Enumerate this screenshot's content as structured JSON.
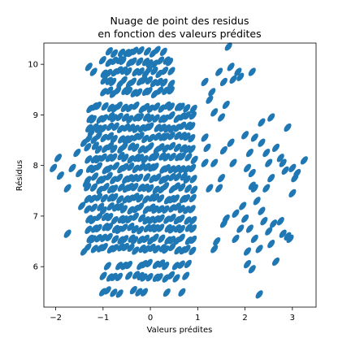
{
  "chart_data": {
    "type": "scatter",
    "title_lines": [
      "Nuage de point des residus",
      "en fonction des valeurs prédites"
    ],
    "xlabel": "Valeurs prédites",
    "ylabel": "Résidus",
    "xlim": [
      -2.25,
      3.5
    ],
    "ylim": [
      5.2,
      10.42
    ],
    "xticks": [
      -2,
      -1,
      0,
      1,
      2,
      3
    ],
    "yticks": [
      6,
      7,
      8,
      9,
      10
    ],
    "grid": false,
    "legend": false,
    "marker_color": "#1f77b4",
    "series": [
      {
        "dense_region": {
          "x_range": [
            -1.3,
            0.9
          ],
          "y_range": [
            5.45,
            10.35
          ],
          "y_levels": [
            5.5,
            5.8,
            6.05,
            6.35,
            6.55,
            6.75,
            6.95,
            7.15,
            7.35,
            7.55,
            7.75,
            7.95,
            8.15,
            8.35,
            8.55,
            8.75,
            8.95,
            9.15,
            9.45,
            9.65,
            9.85,
            10.05,
            10.25
          ]
        },
        "points": [
          [
            -2.05,
            7.95
          ],
          [
            -1.9,
            7.8
          ],
          [
            -1.95,
            8.15
          ],
          [
            -1.75,
            7.55
          ],
          [
            -1.75,
            6.65
          ],
          [
            -1.65,
            7.95
          ],
          [
            -1.55,
            8.25
          ],
          [
            -1.5,
            7.85
          ],
          [
            -1.45,
            7.2
          ],
          [
            -1.4,
            8.45
          ],
          [
            -1.4,
            6.3
          ],
          [
            -1.35,
            7.65
          ],
          [
            -1.3,
            9.95
          ],
          [
            -1.2,
            9.85
          ],
          [
            -1.25,
            8.65
          ],
          [
            1.15,
            9.65
          ],
          [
            1.15,
            8.05
          ],
          [
            1.25,
            7.55
          ],
          [
            1.3,
            9.45
          ],
          [
            1.2,
            8.35
          ],
          [
            1.45,
            9.85
          ],
          [
            1.55,
            9.65
          ],
          [
            1.65,
            10.35
          ],
          [
            1.5,
            8.95
          ],
          [
            1.35,
            9.05
          ],
          [
            1.7,
            9.95
          ],
          [
            1.75,
            9.7
          ],
          [
            1.85,
            9.85
          ],
          [
            1.9,
            9.75
          ],
          [
            2.15,
            9.85
          ],
          [
            1.6,
            9.2
          ],
          [
            1.55,
            8.3
          ],
          [
            1.5,
            7.75
          ],
          [
            1.45,
            7.55
          ],
          [
            1.35,
            8.05
          ],
          [
            1.6,
            6.95
          ],
          [
            1.55,
            6.85
          ],
          [
            1.7,
            8.45
          ],
          [
            1.75,
            8.05
          ],
          [
            1.8,
            7.05
          ],
          [
            1.4,
            6.5
          ],
          [
            1.35,
            6.35
          ],
          [
            1.8,
            6.55
          ],
          [
            1.9,
            6.75
          ],
          [
            2.0,
            8.6
          ],
          [
            2.1,
            8.25
          ],
          [
            2.05,
            7.95
          ],
          [
            2.15,
            7.85
          ],
          [
            2.2,
            7.55
          ],
          [
            2.25,
            7.3
          ],
          [
            2.0,
            6.95
          ],
          [
            2.1,
            6.75
          ],
          [
            2.2,
            6.55
          ],
          [
            2.3,
            6.35
          ],
          [
            2.05,
            6.3
          ],
          [
            2.15,
            5.95
          ],
          [
            2.3,
            5.45
          ],
          [
            2.2,
            8.55
          ],
          [
            2.35,
            8.45
          ],
          [
            2.45,
            8.25
          ],
          [
            2.5,
            8.05
          ],
          [
            2.55,
            7.75
          ],
          [
            2.45,
            7.55
          ],
          [
            2.4,
            6.9
          ],
          [
            2.5,
            6.7
          ],
          [
            2.55,
            6.45
          ],
          [
            2.65,
            8.35
          ],
          [
            2.75,
            8.15
          ],
          [
            2.8,
            8.05
          ],
          [
            2.85,
            7.9
          ],
          [
            2.9,
            8.75
          ],
          [
            3.0,
            7.95
          ],
          [
            3.05,
            7.75
          ],
          [
            3.1,
            7.85
          ],
          [
            3.25,
            8.1
          ],
          [
            2.65,
            6.1
          ],
          [
            2.8,
            6.65
          ],
          [
            2.9,
            6.6
          ],
          [
            2.95,
            6.55
          ],
          [
            3.0,
            7.45
          ],
          [
            2.35,
            8.85
          ],
          [
            2.55,
            8.95
          ],
          [
            1.15,
            8.55
          ],
          [
            1.25,
            9.3
          ],
          [
            2.05,
            6.05
          ],
          [
            1.95,
            7.2
          ],
          [
            2.15,
            7.6
          ],
          [
            2.35,
            7.1
          ],
          [
            2.6,
            6.85
          ],
          [
            2.75,
            6.9
          ]
        ]
      }
    ]
  }
}
